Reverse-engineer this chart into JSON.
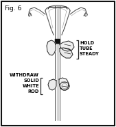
{
  "title": "Fig. 6",
  "label_hold": "HOLD\nTUBE\nSTEADY",
  "label_withdraw": "WITHDRAW\nSOLID\nWHITE\nROD",
  "bg_color": "#ffffff",
  "border_color": "#111111",
  "text_color": "#000000",
  "line_color": "#555555",
  "dark_color": "#222222",
  "fig_width": 1.69,
  "fig_height": 1.86,
  "dpi": 100
}
